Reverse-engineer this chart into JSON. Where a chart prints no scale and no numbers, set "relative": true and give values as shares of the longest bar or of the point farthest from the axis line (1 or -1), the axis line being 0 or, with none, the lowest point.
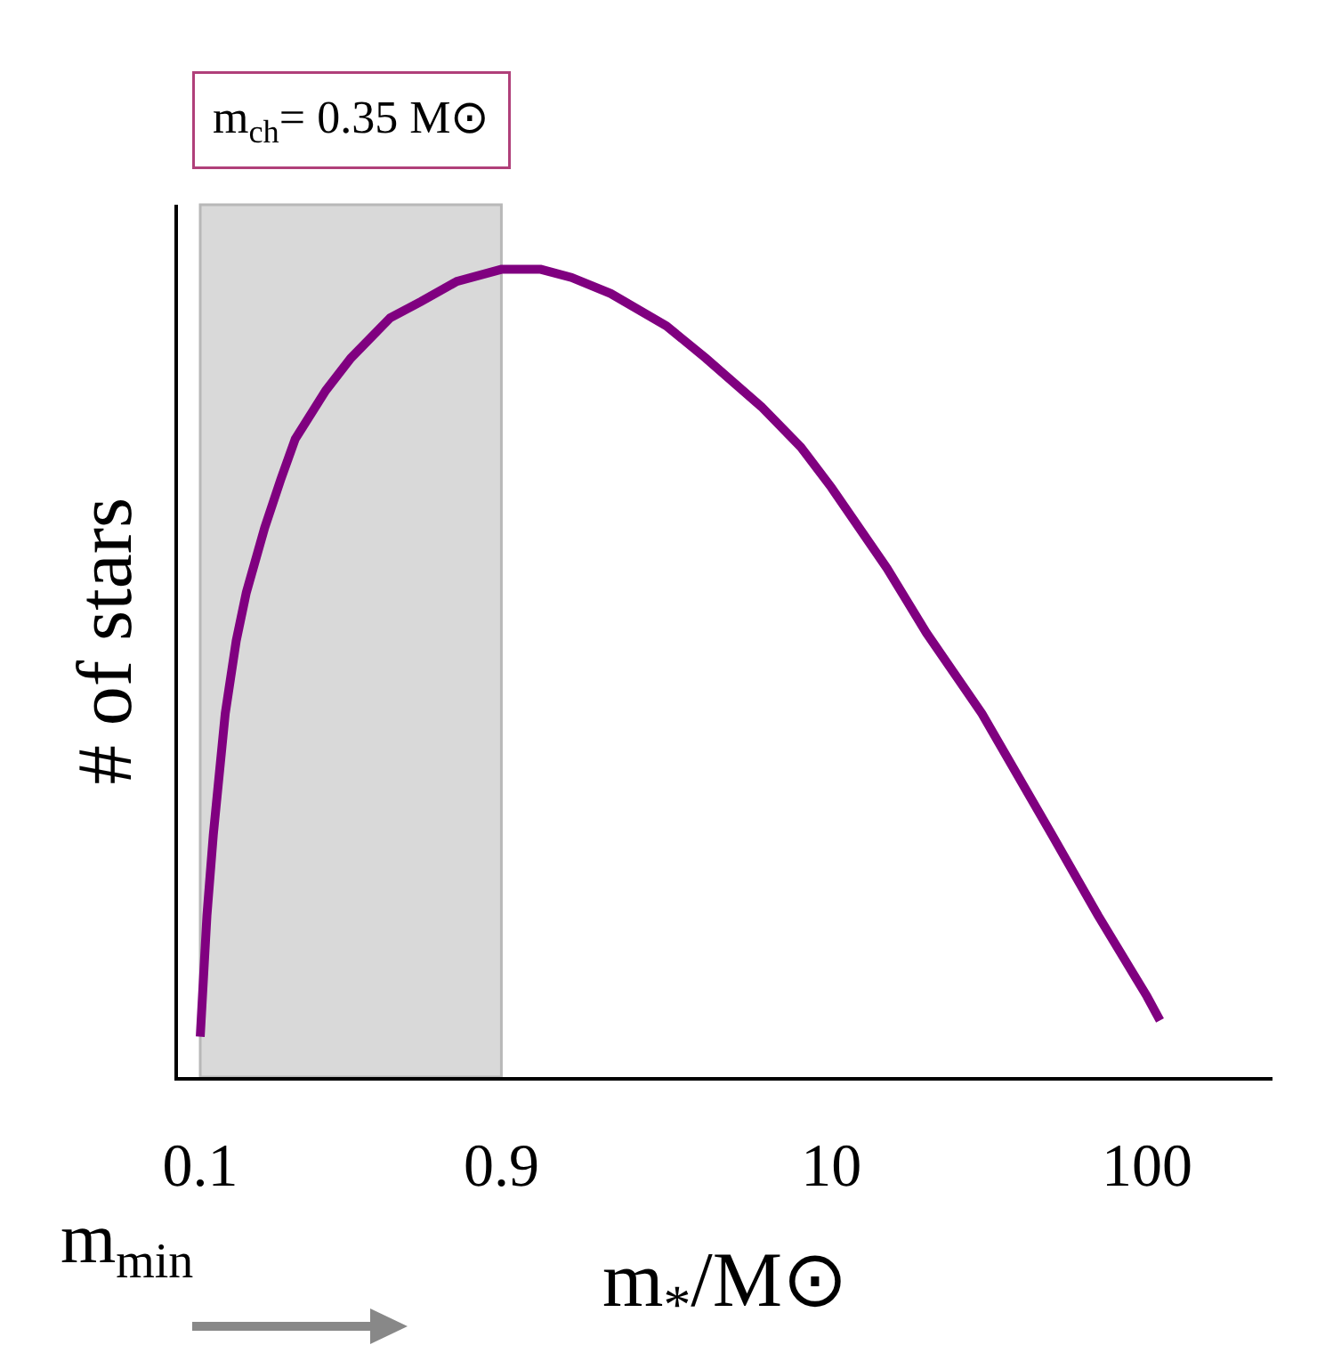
{
  "chart_data": {
    "type": "line",
    "relative": true,
    "xlabel": "m$_{*}$/M⊙",
    "ylabel": "# of stars",
    "log": "x",
    "x": [
      0.1,
      0.105,
      0.11,
      0.12,
      0.13,
      0.14,
      0.16,
      0.18,
      0.2,
      0.25,
      0.3,
      0.4,
      0.5,
      0.65,
      0.9,
      1.2,
      1.5,
      2,
      3,
      4,
      6,
      8,
      10,
      15,
      20,
      30,
      50,
      70,
      100,
      110
    ],
    "series": [
      {
        "color": "#800080",
        "values": [
          0.05,
          0.2,
          0.3,
          0.45,
          0.54,
          0.6,
          0.68,
          0.74,
          0.79,
          0.85,
          0.89,
          0.94,
          0.96,
          0.985,
          1.0,
          1.0,
          0.99,
          0.97,
          0.93,
          0.89,
          0.83,
          0.78,
          0.73,
          0.63,
          0.55,
          0.45,
          0.3,
          0.2,
          0.1,
          0.07
        ]
      }
    ],
    "xlim": [
      0.085,
      250
    ],
    "xticks": [
      0.1,
      0.9,
      10,
      100
    ],
    "bands": [
      {
        "axis": "x",
        "from": 0.1,
        "to": 0.9,
        "label": "m$_{ch}$= 0.35 M⊙",
        "color": "#d9d9d9"
      }
    ],
    "annotations": [
      "m$_{min}$"
    ],
    "marker": "none",
    "line_style": "solid"
  }
}
